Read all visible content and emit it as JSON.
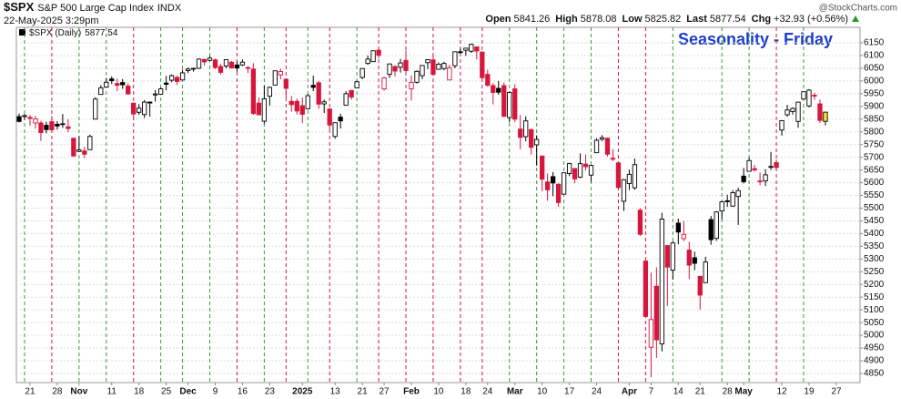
{
  "header": {
    "symbol": "$SPX",
    "name": "S&P 500 Large Cap Index",
    "exchange": "INDX",
    "timestamp": "22-May-2025 3:29pm",
    "open_label": "Open",
    "high_label": "High",
    "low_label": "Low",
    "last_label": "Last",
    "chg_label": "Chg",
    "change": "+32.93 (+0.56%)",
    "credit": "@StockCharts.com"
  },
  "chart_data": {
    "type": "candlestick",
    "title": "Seasonality - Friday",
    "legend": "$SPX (Daily)",
    "categories": [
      null,
      null,
      "21",
      null,
      null,
      null,
      null,
      "28",
      null,
      null,
      null,
      "Nov",
      null,
      null,
      null,
      null,
      null,
      "11",
      null,
      null,
      null,
      null,
      "18",
      null,
      null,
      null,
      null,
      "25",
      null,
      null,
      null,
      "Dec",
      null,
      null,
      null,
      null,
      "9",
      null,
      null,
      null,
      null,
      "16",
      null,
      null,
      null,
      null,
      "23",
      null,
      null,
      null,
      null,
      null,
      "2025",
      null,
      null,
      null,
      null,
      null,
      "13",
      null,
      null,
      null,
      null,
      "21",
      null,
      null,
      null,
      "27",
      null,
      null,
      null,
      null,
      "Feb",
      null,
      null,
      null,
      null,
      "10",
      null,
      null,
      null,
      null,
      "18",
      null,
      null,
      null,
      "24",
      null,
      null,
      null,
      null,
      "Mar",
      null,
      null,
      null,
      null,
      "10",
      null,
      null,
      null,
      null,
      "17",
      null,
      null,
      null,
      null,
      "24",
      null,
      null,
      null,
      null,
      null,
      "Apr",
      null,
      null,
      null,
      "7",
      null,
      null,
      null,
      null,
      "14",
      null,
      null,
      null,
      "21",
      null,
      null,
      null,
      null,
      "28",
      null,
      null,
      "May",
      null,
      null,
      null,
      null,
      null,
      null,
      "12",
      null,
      null,
      null,
      null,
      "19",
      null,
      null,
      null,
      null,
      "27"
    ],
    "open": [
      5860,
      5860,
      5857,
      5835,
      5835,
      5826,
      5840,
      5830,
      5830,
      5820,
      5775,
      5723,
      5725,
      5730,
      5850,
      5947,
      5976,
      6008,
      5990,
      5994,
      5980,
      5913,
      5877,
      5868,
      5917,
      5945,
      5948,
      5992,
      6003,
      6014,
      6004,
      6041,
      6048,
      6050,
      6085,
      6081,
      6083,
      6057,
      6059,
      6074,
      6063,
      6063,
      6053,
      6047,
      5913,
      5842,
      5940,
      5984,
      6024,
      6007,
      5920,
      5920,
      5903,
      5891,
      5983,
      5993,
      5910,
      5890,
      5782,
      5858,
      5905,
      5963,
      5973,
      6014,
      6069,
      6076,
      6121,
      5969,
      6026,
      6057,
      6054,
      6081,
      5969,
      5995,
      6021,
      6072,
      6083,
      6046,
      6049,
      6004,
      6060,
      6115,
      6121,
      6117,
      6134,
      6114,
      6026,
      5982,
      5971,
      5982,
      5856,
      5969,
      5811,
      5781,
      5809,
      5749,
      5705,
      5603,
      5624,
      5594,
      5555,
      5636,
      5656,
      5622,
      5673,
      5630,
      5718,
      5771,
      5775,
      5696,
      5678,
      5527,
      5597,
      5580,
      5492,
      5292,
      4953,
      5193,
      4966,
      5353,
      5256,
      5441,
      5380,
      5335,
      5305,
      5232,
      5207,
      5455,
      5381,
      5489,
      5529,
      5508,
      5546,
      5626,
      5645,
      5655,
      5606,
      5607,
      5663,
      5679,
      5807,
      5867,
      5880,
      5841,
      5929,
      5902,
      5944,
      5910,
      5841.26,
      null,
      null
    ],
    "high": [
      5872,
      5870,
      5866,
      5863,
      5843,
      5840,
      5862,
      5842,
      5870,
      5850,
      5775,
      5783,
      5741,
      5789,
      5936,
      5983,
      6012,
      6018,
      6009,
      6008,
      5991,
      5915,
      5909,
      5925,
      5920,
      5964,
      5974,
      6020,
      6026,
      6021,
      6044,
      6053,
      6052,
      6089,
      6085,
      6099,
      6088,
      6068,
      6085,
      6079,
      6078,
      6085,
      6058,
      6070,
      5935,
      5982,
      5978,
      6040,
      6049,
      6007,
      5941,
      5930,
      5935,
      5949,
      6021,
      6000,
      5927,
      5890,
      5836,
      5871,
      5960,
      5964,
      6001,
      6051,
      6100,
      6119,
      6128,
      6017,
      6069,
      6062,
      6087,
      6120,
      6022,
      6042,
      6062,
      6084,
      6101,
      6073,
      6076,
      6064,
      6116,
      6128,
      6129,
      6147,
      6134,
      6115,
      6044,
      5992,
      6000,
      5994,
      5959,
      5987,
      5866,
      5861,
      5812,
      5786,
      5706,
      5636,
      5642,
      5598,
      5639,
      5678,
      5657,
      5715,
      5711,
      5670,
      5775,
      5787,
      5777,
      5732,
      5678,
      5615,
      5651,
      5695,
      5500,
      5292,
      5246,
      5267,
      5481,
      5353,
      5369,
      5459,
      5450,
      5368,
      5329,
      5233,
      5309,
      5469,
      5489,
      5528,
      5553,
      5571,
      5581,
      5658,
      5700,
      5670,
      5640,
      5653,
      5721,
      5691,
      5845,
      5906,
      5896,
      5917,
      5959,
      5968,
      5954,
      5927,
      5878.08,
      null,
      null
    ],
    "low": [
      5837,
      5846,
      5824,
      5813,
      5764,
      5794,
      5798,
      5809,
      5816,
      5799,
      5702,
      5720,
      5696,
      5730,
      5850,
      5947,
      5976,
      5988,
      5960,
      5969,
      5947,
      5854,
      5867,
      5855,
      5860,
      5919,
      5945,
      5963,
      5995,
      5984,
      6004,
      6031,
      6037,
      6047,
      6061,
      6079,
      6047,
      6025,
      6050,
      6051,
      6036,
      6059,
      6031,
      5867,
      5866,
      5832,
      5903,
      5983,
      6007,
      5932,
      5879,
      5868,
      5834,
      5888,
      5960,
      5890,
      5874,
      5807,
      5773,
      5813,
      5905,
      5927,
      5973,
      6007,
      6064,
      6075,
      6089,
      5962,
      6012,
      6018,
      6033,
      6030,
      5923,
      5990,
      6007,
      6047,
      6020,
      6044,
      6042,
      6003,
      6050,
      6108,
      6099,
      6111,
      6085,
      6008,
      5977,
      5908,
      5946,
      5858,
      5837,
      5838,
      5732,
      5763,
      5711,
      5667,
      5566,
      5529,
      5547,
      5505,
      5555,
      5626,
      5598,
      5618,
      5649,
      5603,
      5718,
      5764,
      5704,
      5685,
      5572,
      5489,
      5571,
      5572,
      5391,
      5069,
      4835,
      4911,
      4937,
      5115,
      5220,
      5358,
      5370,
      5221,
      5256,
      5101,
      5207,
      5356,
      5371,
      5455,
      5505,
      5505,
      5434,
      5597,
      5645,
      5644,
      5590,
      5587,
      5651,
      5649,
      5785,
      5859,
      5868,
      5816,
      5926,
      5896,
      5925,
      5835,
      5825.82,
      null,
      null
    ],
    "close": [
      5841,
      5864,
      5853,
      5851,
      5797,
      5809,
      5808,
      5823,
      5832,
      5813,
      5705,
      5729,
      5712,
      5782,
      5929,
      5973,
      5995,
      6001,
      5983,
      5985,
      5949,
      5870,
      5893,
      5917,
      5917,
      5949,
      5969,
      5987,
      6021,
      5998,
      6032,
      6047,
      6050,
      6086,
      6075,
      6090,
      6053,
      6034,
      6084,
      6051,
      6051,
      6074,
      6050,
      5872,
      5867,
      5930,
      5975,
      6040,
      6037,
      5971,
      5907,
      5882,
      5869,
      5942,
      5975,
      5909,
      5918,
      5827,
      5836,
      5843,
      5950,
      5937,
      5997,
      6049,
      6086,
      6119,
      6101,
      6012,
      6067,
      6039,
      6071,
      6041,
      5994,
      6038,
      6061,
      6084,
      6026,
      6066,
      6069,
      6052,
      6115,
      6115,
      6129,
      6144,
      6118,
      6013,
      5983,
      5955,
      5956,
      5861,
      5955,
      5850,
      5778,
      5843,
      5739,
      5770,
      5614,
      5572,
      5599,
      5522,
      5639,
      5675,
      5615,
      5675,
      5663,
      5668,
      5767,
      5777,
      5712,
      5693,
      5581,
      5612,
      5633,
      5671,
      5397,
      5074,
      5062,
      4982,
      5457,
      5268,
      5363,
      5406,
      5397,
      5276,
      5283,
      5158,
      5288,
      5376,
      5485,
      5525,
      5529,
      5561,
      5569,
      5604,
      5687,
      5650,
      5607,
      5631,
      5664,
      5660,
      5844,
      5886,
      5892,
      5917,
      5958,
      5964,
      5941,
      5845,
      5877.54,
      null,
      null
    ],
    "fridays": [
      1,
      6,
      11,
      16,
      21,
      26,
      30,
      35,
      40,
      45,
      49,
      53,
      57,
      62,
      66,
      71,
      76,
      81,
      85,
      90,
      95,
      100,
      105,
      110,
      115,
      120,
      129,
      134,
      139,
      144
    ],
    "ylim": [
      4814,
      6211
    ],
    "yticks": [
      4850,
      4900,
      4950,
      5000,
      5050,
      5100,
      5150,
      5200,
      5250,
      5300,
      5350,
      5400,
      5450,
      5500,
      5550,
      5600,
      5650,
      5700,
      5750,
      5800,
      5850,
      5900,
      5950,
      6000,
      6050,
      6100,
      6150
    ],
    "grid": true,
    "up_color": "#000000",
    "down_color": "#d6163c",
    "last_color": "#f2e830",
    "friday_up_color": "#3a9a3a",
    "friday_down_color": "#d6163c",
    "title_color": "#1a3ccc"
  }
}
